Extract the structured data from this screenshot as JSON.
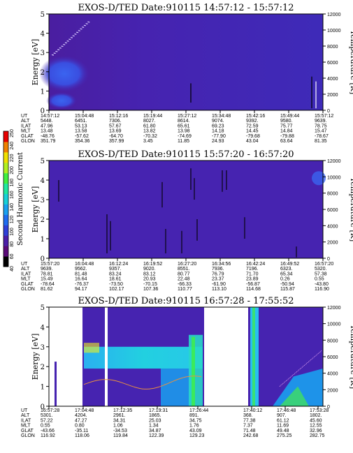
{
  "chart_data": [
    {
      "type": "heatmap",
      "title": "EXOS-D/TED   Date:910115   14:57:12 - 15:57:12",
      "ylabel": "Energy [eV]",
      "y2label": "Temperature [K]",
      "ylim": [
        0,
        5
      ],
      "y2lim": [
        0,
        12000
      ],
      "yticks": [
        "0",
        "1",
        "2",
        "3",
        "4",
        "5"
      ],
      "y2ticks": [
        "0",
        "2000",
        "4000",
        "6000",
        "8000",
        "10000",
        "12000"
      ],
      "row_labels": [
        "UT",
        "ALT",
        "ILAT",
        "MLT",
        "GLAT",
        "GLON"
      ],
      "columns": [
        [
          "14:57:12",
          "5448.",
          "47.96",
          "13.48",
          "-48.76",
          "351.79"
        ],
        [
          "15:04:48",
          "6451.",
          "53.13",
          "13.58",
          "-57.62",
          "354.36"
        ],
        [
          "15:12:16",
          "7306.",
          "57.67",
          "13.69",
          "-64.70",
          "357.99"
        ],
        [
          "15:19:44",
          "8027.",
          "61.80",
          "13.82",
          "-70.32",
          "3.45"
        ],
        [
          "15:27:12",
          "8614.",
          "65.61",
          "13.98",
          "-74.69",
          "11.85"
        ],
        [
          "15:34:48",
          "9074.",
          "69.23",
          "14.18",
          "-77.90",
          "24.93"
        ],
        [
          "15:42:16",
          "9392.",
          "72.59",
          "14.45",
          "-79.68",
          "43.04"
        ],
        [
          "15:49:44",
          "9580.",
          "75.77",
          "14.84",
          "-79.88",
          "63.64"
        ],
        [
          "15:57:12",
          "9639.",
          "78.75",
          "15.47",
          "-78.67",
          "81.35"
        ]
      ]
    },
    {
      "type": "heatmap",
      "title": "EXOS-D/TED   Date:910115   15:57:20 - 16:57:20",
      "ylabel": "Energy [eV]",
      "y2label": "Temperature [K]",
      "ylim": [
        0,
        5
      ],
      "y2lim": [
        0,
        12000
      ],
      "yticks": [
        "0",
        "1",
        "2",
        "3",
        "4",
        "5"
      ],
      "y2ticks": [
        "0",
        "2000",
        "4000",
        "6000",
        "8000",
        "10000",
        "12000"
      ],
      "row_labels": [
        "UT",
        "ALT",
        "ILAT",
        "MLT",
        "GLAT",
        "GLON"
      ],
      "columns": [
        [
          "15:57:20",
          "9639.",
          "78.81",
          "15.49",
          "-78.64",
          "81.62"
        ],
        [
          "16:04:48",
          "9562.",
          "81.48",
          "16.64",
          "-76.37",
          "94.17"
        ],
        [
          "16:12:24",
          "9357.",
          "83.24",
          "18.61",
          "-73.50",
          "102.17"
        ],
        [
          "16:19:52",
          "9020.",
          "83.12",
          "20.93",
          "-70.15",
          "107.36"
        ],
        [
          "16:27:20",
          "8551.",
          "80.77",
          "22.48",
          "-66.33",
          "110.77"
        ],
        [
          "16:34:56",
          "7936.",
          "76.79",
          "23.37",
          "-61.90",
          "113.10"
        ],
        [
          "16:42:24",
          "7196.",
          "71.70",
          "23.89",
          "-56.87",
          "114.68"
        ],
        [
          "16:49:52",
          "6323.",
          "65.34",
          "0.26",
          "-50.94",
          "115.87"
        ],
        [
          "16:57:20",
          "5320.",
          "57.38",
          "0.55",
          "-43.80",
          "116.90"
        ]
      ]
    },
    {
      "type": "heatmap",
      "title": "EXOS-D/TED   Date:910115   16:57:28 - 17:55:52",
      "ylabel": "Energy [eV]",
      "y2label": "Temperature [K]",
      "ylim": [
        0,
        5
      ],
      "y2lim": [
        0,
        12000
      ],
      "yticks": [
        "0",
        "1",
        "2",
        "3",
        "4",
        "5"
      ],
      "y2ticks": [
        "0",
        "2000",
        "4000",
        "6000",
        "8000",
        "10000",
        "12000"
      ],
      "row_labels": [
        "UT",
        "ALT",
        "ILAT",
        "MLT",
        "GLAT",
        "GLON"
      ],
      "columns": [
        [
          "16:57:28",
          "5301.",
          "57.22",
          "0.55",
          "-43.66",
          "116.92"
        ],
        [
          "17:04:48",
          "4204.",
          "47.27",
          "0.80",
          "-35.11",
          "118.06"
        ],
        [
          "17:12:35",
          "2961.",
          "34.31",
          "1.06",
          "-34.53",
          "119.84"
        ],
        [
          "17:19:31",
          "1865.",
          "25.03",
          "1.34",
          "34.87",
          "122.39"
        ],
        [
          "17:26:44",
          "891.",
          "34.75",
          "1.76",
          "43.09",
          "129.23"
        ],
        [
          "17:40:12",
          "368.",
          "77.38",
          "7.37",
          "71.48",
          "242.68"
        ],
        [
          "17:46:48",
          "907.",
          "61.12",
          "11.69",
          "49.48",
          "275.25"
        ],
        [
          "17:53:28",
          "1802.",
          "45.60",
          "12.55",
          "32.96",
          "282.75"
        ]
      ]
    }
  ],
  "colorbar": {
    "label": "Second Harmonic Current",
    "ticks": [
      "40",
      "60",
      "80",
      "100",
      "120",
      "140",
      "160",
      "180",
      "200",
      "220",
      "240",
      "250"
    ],
    "colors": [
      "#000000",
      "#5a0a78",
      "#4b1ea8",
      "#2f3fd8",
      "#1f6cf0",
      "#1aa0f0",
      "#18d0d8",
      "#20e8a0",
      "#40f040",
      "#b0f020",
      "#f0e000",
      "#f08000",
      "#e80000"
    ]
  }
}
